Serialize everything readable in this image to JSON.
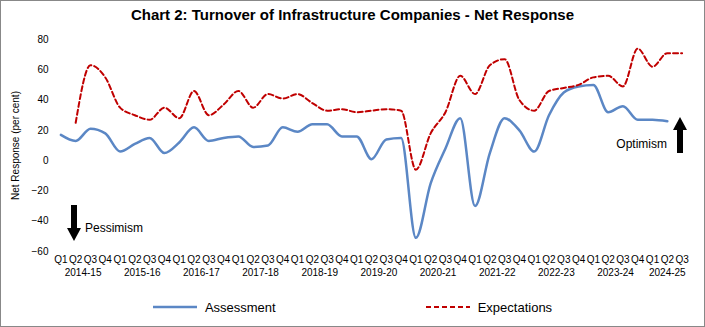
{
  "chart_data": {
    "type": "line",
    "title": "Chart 2: Turnover of Infrastructure Companies - Net Response",
    "y_label": "Net Response (per cent)",
    "categories": [
      "Q1",
      "Q2",
      "Q3",
      "Q4",
      "Q1",
      "Q2",
      "Q3",
      "Q4",
      "Q1",
      "Q2",
      "Q3",
      "Q4",
      "Q1",
      "Q2",
      "Q3",
      "Q4",
      "Q1",
      "Q2",
      "Q3",
      "Q4",
      "Q1",
      "Q2",
      "Q3",
      "Q4",
      "Q1",
      "Q2",
      "Q3",
      "Q4",
      "Q1",
      "Q2",
      "Q3",
      "Q4",
      "Q1",
      "Q2",
      "Q3",
      "Q4",
      "Q1",
      "Q2",
      "Q3",
      "Q4",
      "Q1",
      "Q2",
      "Q3"
    ],
    "year_labels": [
      "2014-15",
      "2015-16",
      "2016-17",
      "2017-18",
      "2018-19",
      "2019-20",
      "2020-21",
      "2021-22",
      "2022-23",
      "2023-24",
      "2024-25"
    ],
    "series": [
      {
        "name": "Assessment",
        "color": "#5b87c5",
        "line_style": "solid",
        "values": [
          17,
          13,
          21,
          18,
          6,
          11,
          15,
          5,
          12,
          22,
          13,
          15,
          16,
          9,
          10,
          22,
          19,
          24,
          24,
          16,
          16,
          1,
          14,
          15,
          -51,
          -15,
          8,
          28,
          -30,
          5,
          28,
          20,
          6,
          30,
          45,
          49,
          50,
          32,
          36,
          27,
          27,
          26,
          null
        ]
      },
      {
        "name": "Expectations",
        "color": "#c00000",
        "line_style": "dashed",
        "values": [
          null,
          25,
          63,
          55,
          35,
          30,
          27,
          35,
          28,
          46,
          30,
          37,
          46,
          35,
          44,
          41,
          44,
          38,
          33,
          34,
          32,
          33,
          34,
          33,
          -6,
          18,
          32,
          56,
          44,
          63,
          67,
          40,
          33,
          46,
          48,
          50,
          55,
          56,
          49,
          74,
          62,
          71,
          71
        ]
      }
    ],
    "ylim": [
      -60,
      80
    ],
    "yticks": [
      -60,
      -40,
      -20,
      0,
      20,
      40,
      60,
      80
    ],
    "grid": false,
    "legend": "bottom",
    "annotations": [
      "Optimism",
      "Pessimism"
    ]
  }
}
